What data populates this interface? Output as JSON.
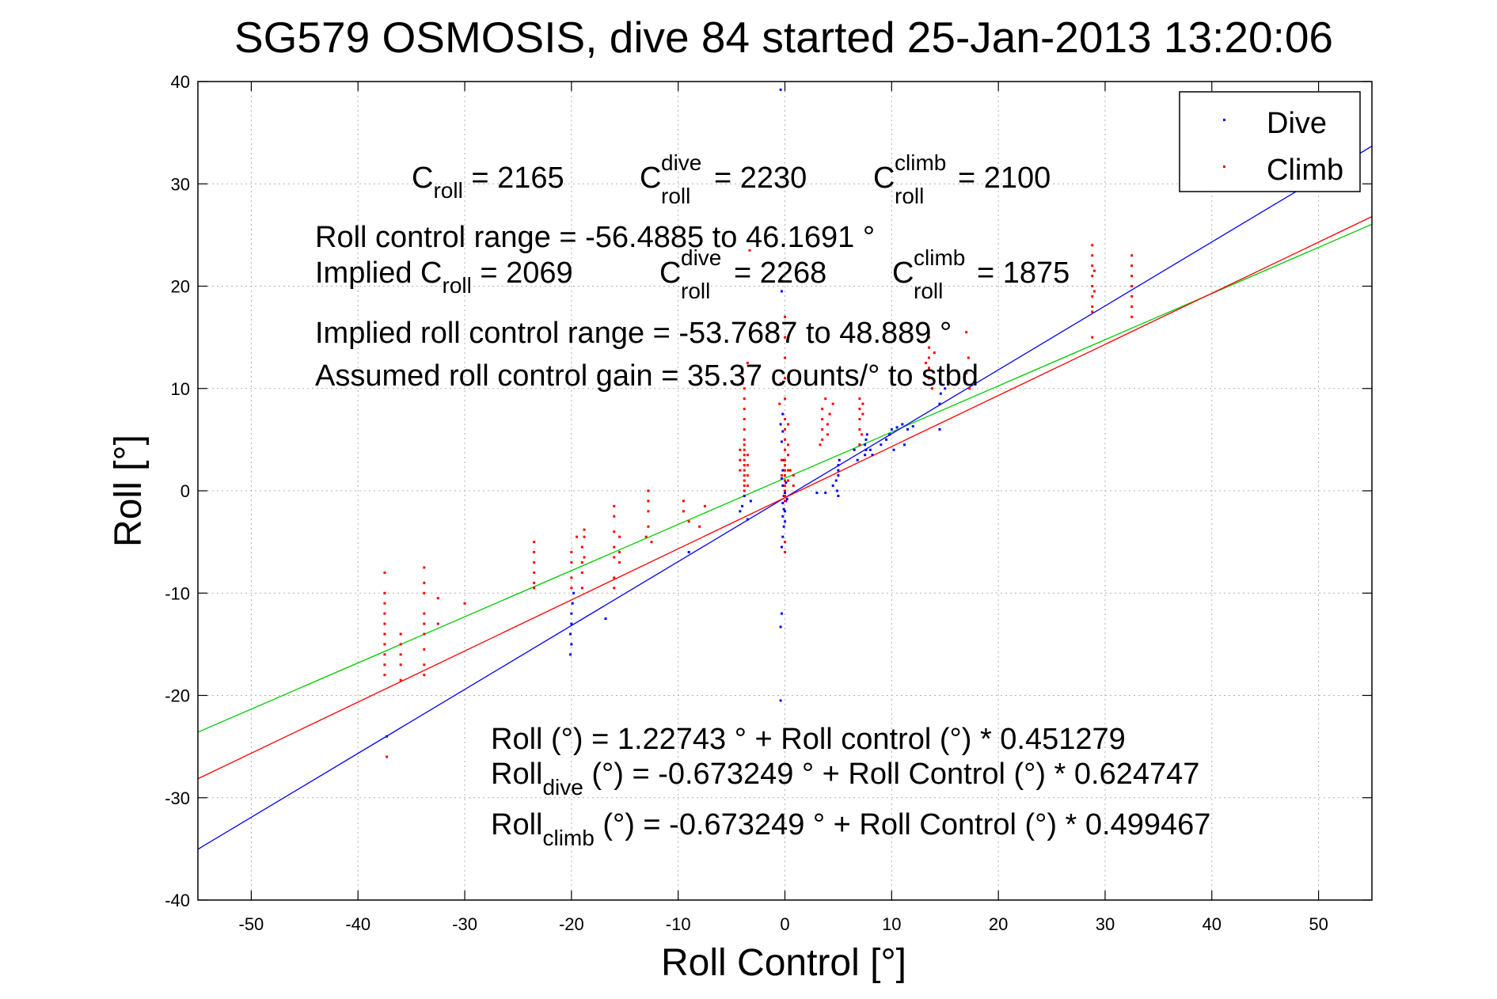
{
  "chart_data": {
    "type": "scatter",
    "title": "SG579 OSMOSIS, dive 84 started 25-Jan-2013 13:20:06",
    "xlabel": "Roll Control [°]",
    "ylabel": "Roll [°]",
    "xlim": [
      -55,
      55
    ],
    "ylim": [
      -40,
      40
    ],
    "xticks": [
      -50,
      -40,
      -30,
      -20,
      -10,
      0,
      10,
      20,
      30,
      40,
      50
    ],
    "yticks": [
      -40,
      -30,
      -20,
      -10,
      0,
      10,
      20,
      30,
      40
    ],
    "grid": true,
    "legend": {
      "position": "top-right",
      "entries": [
        {
          "name": "Dive",
          "color": "#0000ff"
        },
        {
          "name": "Climb",
          "color": "#ff0000"
        }
      ]
    },
    "series": [
      {
        "name": "Dive",
        "color": "#0000ff",
        "points": [
          [
            -0.4,
            39.2
          ],
          [
            -0.3,
            20.5
          ],
          [
            -0.3,
            19.5
          ],
          [
            -0.2,
            7.5
          ],
          [
            -0.4,
            6.5
          ],
          [
            -0.2,
            5.8
          ],
          [
            -0.3,
            4.8
          ],
          [
            -0.2,
            3.0
          ],
          [
            -0.2,
            2.0
          ],
          [
            -0.3,
            1.2
          ],
          [
            -0.2,
            0.5
          ],
          [
            -0.1,
            -0.5
          ],
          [
            -0.2,
            -1.2
          ],
          [
            -0.1,
            -1.8
          ],
          [
            -0.2,
            -2.5
          ],
          [
            -0.1,
            -3.5
          ],
          [
            -0.2,
            -4.5
          ],
          [
            -0.3,
            -5.5
          ],
          [
            0.0,
            -0.2
          ],
          [
            0.1,
            -1.0
          ],
          [
            0.0,
            -2.0
          ],
          [
            0.1,
            0.8
          ],
          [
            0.2,
            -0.8
          ],
          [
            0.0,
            -3.0
          ],
          [
            -0.3,
            -12.0
          ],
          [
            -0.4,
            -13.3
          ],
          [
            -0.4,
            -20.5
          ],
          [
            -4.0,
            -1.5
          ],
          [
            -4.2,
            -2.0
          ],
          [
            -3.8,
            -0.5
          ],
          [
            -3.5,
            -2.8
          ],
          [
            -3.2,
            -1.0
          ],
          [
            -19.8,
            -10.0
          ],
          [
            -19.9,
            -11.0
          ],
          [
            -20.0,
            -12.0
          ],
          [
            -20.0,
            -13.0
          ],
          [
            -20.1,
            -14.0
          ],
          [
            -20.0,
            -15.0
          ],
          [
            -20.1,
            -16.0
          ],
          [
            -16.8,
            -12.5
          ],
          [
            -37.3,
            -24.0
          ],
          [
            -9.0,
            -6.0
          ],
          [
            3.0,
            -0.2
          ],
          [
            3.8,
            -0.2
          ],
          [
            4.5,
            0.5
          ],
          [
            4.8,
            1.0
          ],
          [
            5.0,
            1.5
          ],
          [
            5.0,
            2.0
          ],
          [
            5.0,
            2.5
          ],
          [
            5.1,
            3.0
          ],
          [
            5.0,
            -0.5
          ],
          [
            4.9,
            0.0
          ],
          [
            7.5,
            3.5
          ],
          [
            7.6,
            4.0
          ],
          [
            7.5,
            4.5
          ],
          [
            7.6,
            5.0
          ],
          [
            7.7,
            5.5
          ],
          [
            8.0,
            4.0
          ],
          [
            8.2,
            3.5
          ],
          [
            7.0,
            4.5
          ],
          [
            6.5,
            4.0
          ],
          [
            6.8,
            3.0
          ],
          [
            9.5,
            5.0
          ],
          [
            9.8,
            5.5
          ],
          [
            10.0,
            6.0
          ],
          [
            10.5,
            6.2
          ],
          [
            11.0,
            6.5
          ],
          [
            9.0,
            4.5
          ],
          [
            10.2,
            4.0
          ],
          [
            11.2,
            4.5
          ],
          [
            11.5,
            6.0
          ],
          [
            12.0,
            6.3
          ],
          [
            14.5,
            6.0
          ],
          [
            14.5,
            8.5
          ],
          [
            14.6,
            9.5
          ],
          [
            15.0,
            10.0
          ]
        ]
      },
      {
        "name": "Climb",
        "color": "#ff0000",
        "points": [
          [
            -37.5,
            -8.0
          ],
          [
            -37.5,
            -10.0
          ],
          [
            -37.5,
            -11.0
          ],
          [
            -37.5,
            -12.0
          ],
          [
            -37.5,
            -13.0
          ],
          [
            -37.5,
            -14.0
          ],
          [
            -37.5,
            -15.0
          ],
          [
            -37.5,
            -16.0
          ],
          [
            -37.5,
            -17.0
          ],
          [
            -37.5,
            -18.0
          ],
          [
            -37.3,
            -26.0
          ],
          [
            -36.0,
            -14.0
          ],
          [
            -36.0,
            -15.0
          ],
          [
            -36.0,
            -16.0
          ],
          [
            -36.0,
            -17.0
          ],
          [
            -36.0,
            -18.5
          ],
          [
            -33.8,
            -7.5
          ],
          [
            -33.8,
            -9.0
          ],
          [
            -33.8,
            -10.0
          ],
          [
            -33.8,
            -12.0
          ],
          [
            -33.8,
            -13.0
          ],
          [
            -33.8,
            -14.0
          ],
          [
            -33.8,
            -15.5
          ],
          [
            -33.8,
            -17.0
          ],
          [
            -33.8,
            -18.0
          ],
          [
            -32.5,
            -13.0
          ],
          [
            -32.5,
            -10.5
          ],
          [
            -30.0,
            -11.0
          ],
          [
            -23.5,
            -5.0
          ],
          [
            -23.5,
            -6.0
          ],
          [
            -23.5,
            -7.0
          ],
          [
            -23.5,
            -8.0
          ],
          [
            -23.5,
            -9.0
          ],
          [
            -23.5,
            -9.5
          ],
          [
            -20.0,
            -6.0
          ],
          [
            -20.0,
            -7.0
          ],
          [
            -20.0,
            -8.5
          ],
          [
            -20.0,
            -9.5
          ],
          [
            -19.5,
            -4.5
          ],
          [
            -19.0,
            -5.5
          ],
          [
            -19.0,
            -7.0
          ],
          [
            -19.0,
            -8.0
          ],
          [
            -19.0,
            -9.5
          ],
          [
            -18.8,
            -3.8
          ],
          [
            -18.8,
            -4.5
          ],
          [
            -18.8,
            -6.5
          ],
          [
            -16.0,
            -1.5
          ],
          [
            -16.0,
            -2.5
          ],
          [
            -16.0,
            -4.0
          ],
          [
            -16.0,
            -5.5
          ],
          [
            -16.0,
            -6.5
          ],
          [
            -16.0,
            -8.5
          ],
          [
            -16.0,
            -9.5
          ],
          [
            -15.5,
            -4.5
          ],
          [
            -15.5,
            -6.0
          ],
          [
            -15.5,
            -7.0
          ],
          [
            -12.8,
            0.0
          ],
          [
            -12.8,
            -1.0
          ],
          [
            -12.8,
            -2.0
          ],
          [
            -12.8,
            -3.5
          ],
          [
            -12.5,
            -5.0
          ],
          [
            -13.0,
            -4.5
          ],
          [
            -9.5,
            -1.0
          ],
          [
            -9.5,
            -2.0
          ],
          [
            -9.0,
            -3.0
          ],
          [
            -8.0,
            -3.5
          ],
          [
            -7.5,
            -1.5
          ],
          [
            -4.0,
            11.5
          ],
          [
            -4.0,
            10.5
          ],
          [
            -3.8,
            10.0
          ],
          [
            -3.8,
            9.0
          ],
          [
            -3.8,
            8.0
          ],
          [
            -3.8,
            7.0
          ],
          [
            -3.8,
            6.0
          ],
          [
            -3.8,
            5.0
          ],
          [
            -3.8,
            4.5
          ],
          [
            -3.8,
            4.0
          ],
          [
            -3.8,
            3.5
          ],
          [
            -3.8,
            3.0
          ],
          [
            -3.8,
            2.5
          ],
          [
            -3.8,
            2.0
          ],
          [
            -3.8,
            1.5
          ],
          [
            -3.8,
            1.0
          ],
          [
            -3.8,
            0.5
          ],
          [
            -3.8,
            0.0
          ],
          [
            -3.5,
            3.5
          ],
          [
            -3.5,
            2.5
          ],
          [
            -3.5,
            1.5
          ],
          [
            -3.5,
            0.5
          ],
          [
            -4.2,
            2.0
          ],
          [
            -4.2,
            3.0
          ],
          [
            -4.2,
            4.0
          ],
          [
            -3.3,
            23.5
          ],
          [
            -3.5,
            12.5
          ],
          [
            0.0,
            17.0
          ],
          [
            0.0,
            15.0
          ],
          [
            0.0,
            13.0
          ],
          [
            0.0,
            11.0
          ],
          [
            0.0,
            9.0
          ],
          [
            0.0,
            7.0
          ],
          [
            0.0,
            6.0
          ],
          [
            0.0,
            5.0
          ],
          [
            0.0,
            4.0
          ],
          [
            0.0,
            3.0
          ],
          [
            0.0,
            2.5
          ],
          [
            0.0,
            2.0
          ],
          [
            0.0,
            1.5
          ],
          [
            0.0,
            1.0
          ],
          [
            0.0,
            0.5
          ],
          [
            0.0,
            0.0
          ],
          [
            0.0,
            -0.5
          ],
          [
            0.0,
            -1.0
          ],
          [
            0.3,
            6.5
          ],
          [
            0.3,
            4.5
          ],
          [
            0.3,
            3.5
          ],
          [
            0.3,
            2.0
          ],
          [
            0.3,
            1.0
          ],
          [
            -0.3,
            3.0
          ],
          [
            -0.3,
            1.5
          ],
          [
            0.0,
            -5.0
          ],
          [
            0.0,
            -6.0
          ],
          [
            0.5,
            2.0
          ],
          [
            0.8,
            1.5
          ],
          [
            0.8,
            0.5
          ],
          [
            -0.5,
            8.5
          ],
          [
            -0.4,
            10.5
          ],
          [
            3.5,
            8.0
          ],
          [
            3.5,
            7.0
          ],
          [
            3.5,
            6.0
          ],
          [
            3.5,
            5.0
          ],
          [
            3.8,
            9.0
          ],
          [
            4.0,
            6.5
          ],
          [
            4.0,
            5.5
          ],
          [
            3.3,
            4.5
          ],
          [
            4.5,
            8.5
          ],
          [
            4.2,
            7.5
          ],
          [
            7.0,
            9.0
          ],
          [
            7.0,
            8.0
          ],
          [
            7.0,
            7.0
          ],
          [
            7.0,
            6.0
          ],
          [
            7.2,
            5.5
          ],
          [
            7.3,
            8.5
          ],
          [
            7.3,
            7.5
          ],
          [
            7.0,
            4.5
          ],
          [
            13.5,
            15.0
          ],
          [
            13.5,
            14.0
          ],
          [
            13.5,
            13.0
          ],
          [
            13.5,
            12.0
          ],
          [
            13.5,
            11.0
          ],
          [
            13.2,
            12.5
          ],
          [
            14.0,
            13.5
          ],
          [
            13.8,
            10.0
          ],
          [
            17.0,
            15.5
          ],
          [
            17.2,
            13.0
          ],
          [
            17.0,
            11.5
          ],
          [
            17.3,
            10.0
          ],
          [
            28.8,
            24.0
          ],
          [
            28.8,
            23.0
          ],
          [
            28.8,
            22.0
          ],
          [
            28.8,
            21.0
          ],
          [
            28.8,
            20.0
          ],
          [
            28.8,
            19.0
          ],
          [
            28.8,
            18.0
          ],
          [
            28.8,
            17.5
          ],
          [
            28.8,
            15.0
          ],
          [
            29.0,
            21.5
          ],
          [
            29.0,
            19.5
          ],
          [
            32.5,
            23.0
          ],
          [
            32.5,
            22.0
          ],
          [
            32.5,
            21.0
          ],
          [
            32.5,
            20.0
          ],
          [
            32.5,
            19.0
          ],
          [
            32.5,
            18.0
          ],
          [
            32.5,
            17.0
          ]
        ]
      }
    ],
    "fit_lines": [
      {
        "color": "#00cc00",
        "intercept": 1.22743,
        "slope": 0.451279
      },
      {
        "color": "#0000ff",
        "intercept": -0.673249,
        "slope": 0.624747
      },
      {
        "color": "#ff0000",
        "intercept": -0.673249,
        "slope": 0.499467
      }
    ],
    "annotations": {
      "c_roll_label": "C",
      "c_roll_sub": "roll",
      "c_roll_value": " = 2165",
      "c_dive_label": "C",
      "c_dive_sup": "dive",
      "c_dive_sub": "roll",
      "c_dive_value": " = 2230",
      "c_climb_label": "C",
      "c_climb_sup": "climb",
      "c_climb_sub": "roll",
      "c_climb_value": " = 2100",
      "range_text": "Roll control range = -56.4885 to 46.1691 °",
      "implied_prefix": "Implied C",
      "implied_sub": "roll",
      "implied_value": " = 2069",
      "implied_dive_label": "C",
      "implied_dive_sup": "dive",
      "implied_dive_sub": "roll",
      "implied_dive_value": " = 2268",
      "implied_climb_label": "C",
      "implied_climb_sup": "climb",
      "implied_climb_sub": "roll",
      "implied_climb_value": " = 1875",
      "implied_range_text": "Implied roll control range = -53.7687 to 48.889 °",
      "gain_text": "Assumed roll control gain = 35.37 counts/° to stbd",
      "fit_all_text": "Roll (°) = 1.22743 ° + Roll control (°) * 0.451279",
      "fit_dive_prefix": "Roll",
      "fit_dive_sub": "dive",
      "fit_dive_rest": " (°) = -0.673249 ° + Roll Control (°) * 0.624747",
      "fit_climb_prefix": "Roll",
      "fit_climb_sub": "climb",
      "fit_climb_rest": " (°) = -0.673249 ° + Roll Control (°) * 0.499467"
    }
  }
}
